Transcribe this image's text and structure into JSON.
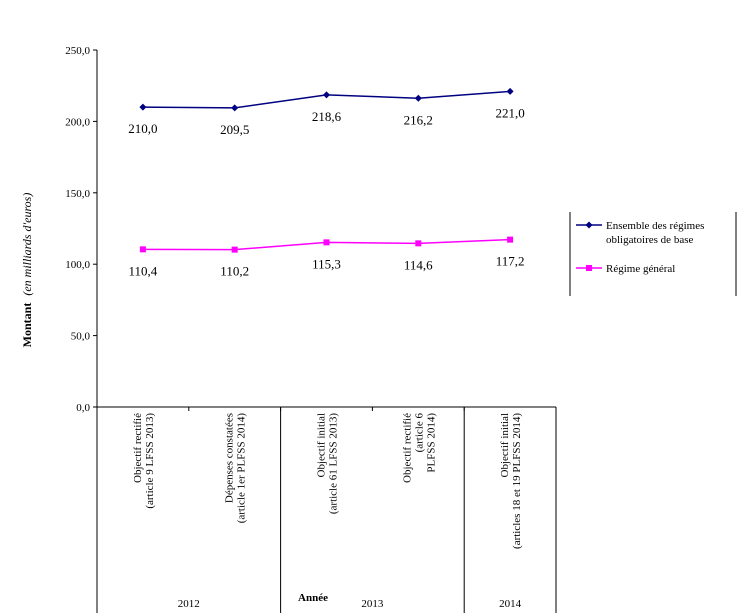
{
  "chart_data": {
    "type": "line",
    "title": "",
    "xlabel": "Année",
    "ylabel": "Montant",
    "ylabel_note": "(en milliards d'euros)",
    "ylim": [
      0,
      250
    ],
    "yticks": [
      "0,0",
      "50,0",
      "100,0",
      "150,0",
      "200,0",
      "250,0"
    ],
    "ytick_values": [
      0,
      50,
      100,
      150,
      200,
      250
    ],
    "grid": false,
    "legend_position": "right",
    "categories": [
      [
        "Objectif rectifié",
        "(article 9 LFSS 2013)"
      ],
      [
        "Dépenses constatées",
        "(article 1er PLFSS 2014)"
      ],
      [
        "Objectif initial",
        "(article 61 LFSS 2013)"
      ],
      [
        "Objectif rectifié",
        "(article 6",
        "PLFSS 2014)"
      ],
      [
        "Objectif initial",
        "(articles 18 et 19 PLFSS 2014)"
      ]
    ],
    "groups": [
      {
        "label": "2012",
        "span": [
          0,
          1
        ]
      },
      {
        "label": "2013",
        "span": [
          2,
          3
        ]
      },
      {
        "label": "2014",
        "span": [
          4,
          4
        ]
      }
    ],
    "series": [
      {
        "name": "Ensemble des régimes obligatoires de base",
        "name_lines": [
          "Ensemble des régimes",
          "obligatoires de base"
        ],
        "color": "#000080",
        "marker": "diamond",
        "values": [
          210.0,
          209.5,
          218.6,
          216.2,
          221.0
        ],
        "labels": [
          "210,0",
          "209,5",
          "218,6",
          "216,2",
          "221,0"
        ]
      },
      {
        "name": "Régime général",
        "name_lines": [
          "Régime général"
        ],
        "color": "#ff00ff",
        "marker": "square",
        "values": [
          110.4,
          110.2,
          115.3,
          114.6,
          117.2
        ],
        "labels": [
          "110,4",
          "110,2",
          "115,3",
          "114,6",
          "117,2"
        ]
      }
    ]
  }
}
